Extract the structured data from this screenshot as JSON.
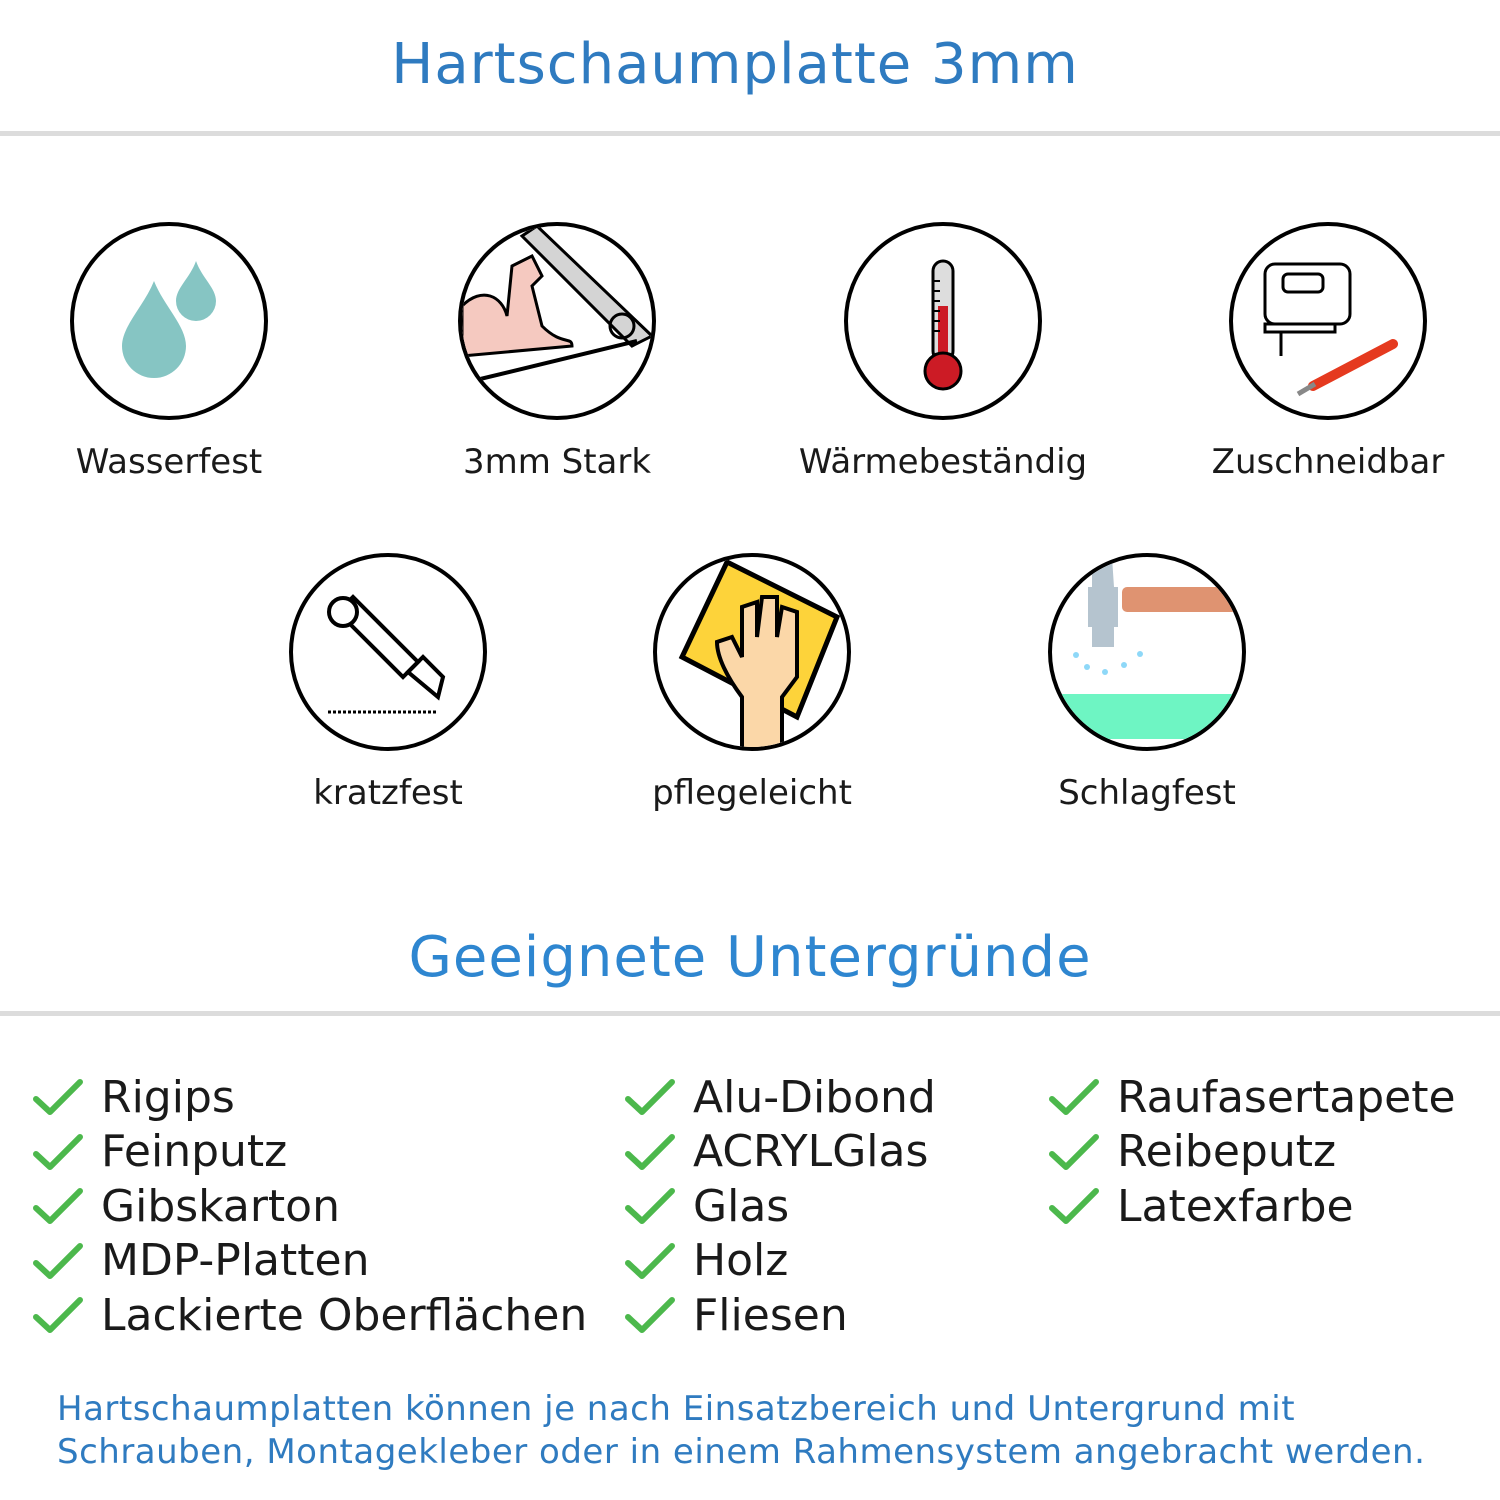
{
  "header": {
    "title": "Hartschaumplatte 3mm"
  },
  "features": [
    {
      "label": "Wasserfest",
      "icon": "water-drops-icon"
    },
    {
      "label": "3mm Stark",
      "icon": "strong-arm-icon"
    },
    {
      "label": "Wärmebeständig",
      "icon": "thermometer-icon"
    },
    {
      "label": "Zuschneidbar",
      "icon": "jigsaw-knife-icon"
    },
    {
      "label": "kratzfest",
      "icon": "cutter-knife-icon"
    },
    {
      "label": "pflegeleicht",
      "icon": "hand-sponge-icon"
    },
    {
      "label": "Schlagfest",
      "icon": "hammer-icon"
    }
  ],
  "surfaces": {
    "heading": "Geeignete Untergründe",
    "columns": [
      [
        "Rigips",
        "Feinputz",
        "Gibskarton",
        "MDP-Platten",
        "Lackierte Oberflächen"
      ],
      [
        "Alu-Dibond",
        "ACRYLGlas",
        "Glas",
        "Holz",
        "Fliesen"
      ],
      [
        "Raufasertapete",
        "Reibeputz",
        "Latexfarbe"
      ]
    ]
  },
  "footer": {
    "line1": "Hartschaumplatten können je nach Einsatzbereich und Untergrund mit",
    "line2": "Schrauben, Montagekleber oder in einem Rahmensystem angebracht werden."
  },
  "colors": {
    "title": "#2f7bc0",
    "check": "#4cb84c",
    "divider": "#dcdcdc"
  }
}
